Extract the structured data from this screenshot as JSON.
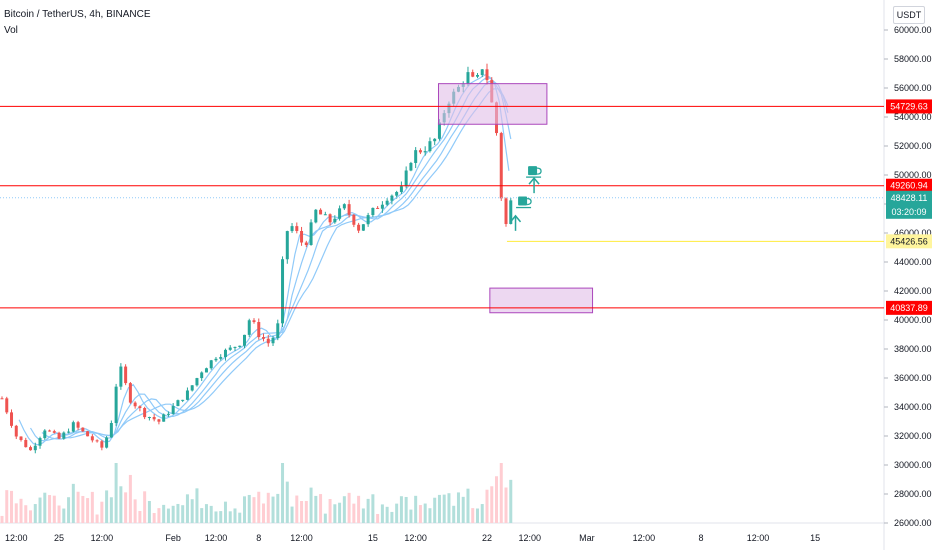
{
  "header": {
    "title": "Bitcoin / TetherUS, 4h, BINANCE",
    "volume_label": "Vol",
    "currency_button": "USDT"
  },
  "colors": {
    "up": "#26a69a",
    "down": "#ef5350",
    "ma": "#90caf9",
    "resistance_line": "#ff0000",
    "zone_fill": "#e1bee7",
    "zone_border": "#ab47bc",
    "current_price_tag": "#26a69a",
    "close_line": "#ffeb3b",
    "close_tag": "#fff59d",
    "volume_up": "#b2dfdb",
    "volume_down": "#ffcdd2"
  },
  "chart_data": {
    "type": "candlestick",
    "symbol": "Bitcoin / TetherUS",
    "timeframe": "4h",
    "exchange": "BINANCE",
    "y_axis": {
      "range": [
        26000,
        61000
      ],
      "ticks": [
        26000,
        28000,
        30000,
        32000,
        34000,
        36000,
        38000,
        40000,
        42000,
        44000,
        46000,
        48000,
        50000,
        52000,
        54000,
        56000,
        58000,
        60000
      ],
      "tick_labels": [
        "26000.00",
        "28000.00",
        "30000.00",
        "32000.00",
        "34000.00",
        "36000.00",
        "38000.00",
        "40000.00",
        "42000.00",
        "44000.00",
        "46000.00",
        "48000.00",
        "50000.00",
        "52000.00",
        "54000.00",
        "56000.00",
        "58000.00",
        "60000.00"
      ]
    },
    "x_axis": {
      "range_days": [
        -9,
        35
      ],
      "ticks": [
        {
          "day": -8.5,
          "label": "12:00"
        },
        {
          "day": -7,
          "label": "25"
        },
        {
          "day": -5.5,
          "label": "12:00"
        },
        {
          "day": -3,
          "label": "Feb"
        },
        {
          "day": -1.5,
          "label": "12:00"
        },
        {
          "day": 0,
          "label": "8"
        },
        {
          "day": 1.5,
          "label": "12:00"
        },
        {
          "day": 4,
          "label": "15"
        },
        {
          "day": 5.5,
          "label": "12:00"
        },
        {
          "day": 8,
          "label": "22"
        },
        {
          "day": 9.5,
          "label": "12:00"
        },
        {
          "day": 11.5,
          "label": "Mar"
        },
        {
          "day": 13.5,
          "label": "12:00"
        },
        {
          "day": 15.5,
          "label": "8"
        },
        {
          "day": 17.5,
          "label": "12:00"
        },
        {
          "day": 19.5,
          "label": "15"
        }
      ]
    },
    "price_path": [
      {
        "day": -9,
        "price": 34600
      },
      {
        "day": -8.5,
        "price": 32000
      },
      {
        "day": -8,
        "price": 31000
      },
      {
        "day": -7.5,
        "price": 32500
      },
      {
        "day": -7,
        "price": 31800
      },
      {
        "day": -6.5,
        "price": 32800
      },
      {
        "day": -6,
        "price": 32000
      },
      {
        "day": -5.5,
        "price": 31200
      },
      {
        "day": -5.2,
        "price": 32500
      },
      {
        "day": -4.9,
        "price": 37000
      },
      {
        "day": -4.5,
        "price": 34500
      },
      {
        "day": -4,
        "price": 33500
      },
      {
        "day": -3.5,
        "price": 33000
      },
      {
        "day": -3,
        "price": 34000
      },
      {
        "day": -2.5,
        "price": 35000
      },
      {
        "day": -2,
        "price": 36500
      },
      {
        "day": -1.5,
        "price": 37500
      },
      {
        "day": -1,
        "price": 38000
      },
      {
        "day": -0.6,
        "price": 38500
      },
      {
        "day": -0.3,
        "price": 40200
      },
      {
        "day": 0,
        "price": 39000
      },
      {
        "day": 0.4,
        "price": 38300
      },
      {
        "day": 0.7,
        "price": 39800
      },
      {
        "day": 0.9,
        "price": 46000
      },
      {
        "day": 1.2,
        "price": 46500
      },
      {
        "day": 1.6,
        "price": 45000
      },
      {
        "day": 2,
        "price": 47500
      },
      {
        "day": 2.5,
        "price": 46800
      },
      {
        "day": 3,
        "price": 47800
      },
      {
        "day": 3.5,
        "price": 46300
      },
      {
        "day": 4,
        "price": 47500
      },
      {
        "day": 4.5,
        "price": 48500
      },
      {
        "day": 5,
        "price": 49000
      },
      {
        "day": 5.4,
        "price": 51500
      },
      {
        "day": 5.8,
        "price": 51800
      },
      {
        "day": 6.2,
        "price": 52500
      },
      {
        "day": 6.6,
        "price": 55000
      },
      {
        "day": 7,
        "price": 56000
      },
      {
        "day": 7.3,
        "price": 57000
      },
      {
        "day": 7.6,
        "price": 56300
      },
      {
        "day": 7.9,
        "price": 57800
      },
      {
        "day": 8.1,
        "price": 55500
      },
      {
        "day": 8.3,
        "price": 53800
      },
      {
        "day": 8.5,
        "price": 48500
      },
      {
        "day": 8.7,
        "price": 46200
      },
      {
        "day": 8.85,
        "price": 48400
      }
    ],
    "moving_averages_lag_days": [
      0.6,
      1.0,
      1.4,
      1.9
    ],
    "horizontal_levels": [
      {
        "price": 54729.63,
        "label": "54729.63",
        "kind": "resistance"
      },
      {
        "price": 49260.94,
        "label": "49260.94",
        "kind": "resistance"
      },
      {
        "price": 40837.89,
        "label": "40837.89",
        "kind": "support"
      }
    ],
    "current_price": {
      "price": 48428.11,
      "label": "48428.11",
      "countdown": "03:20:09"
    },
    "close_level": {
      "price": 45426.56,
      "label": "45426.56",
      "start_day": 8.7
    },
    "zones": [
      {
        "day_start": 6.3,
        "day_end": 10.1,
        "price_low": 53500,
        "price_high": 56300
      },
      {
        "day_start": 8.1,
        "day_end": 11.7,
        "price_low": 40500,
        "price_high": 42200
      }
    ],
    "annotations": [
      {
        "type": "arrow-up",
        "day": 9.65,
        "price": 49300
      },
      {
        "type": "cup-icon",
        "day": 9.65,
        "price": 50200
      },
      {
        "type": "arrow-up",
        "day": 9.0,
        "price": 46700
      },
      {
        "type": "cup-icon",
        "day": 9.3,
        "price": 48100
      }
    ]
  }
}
